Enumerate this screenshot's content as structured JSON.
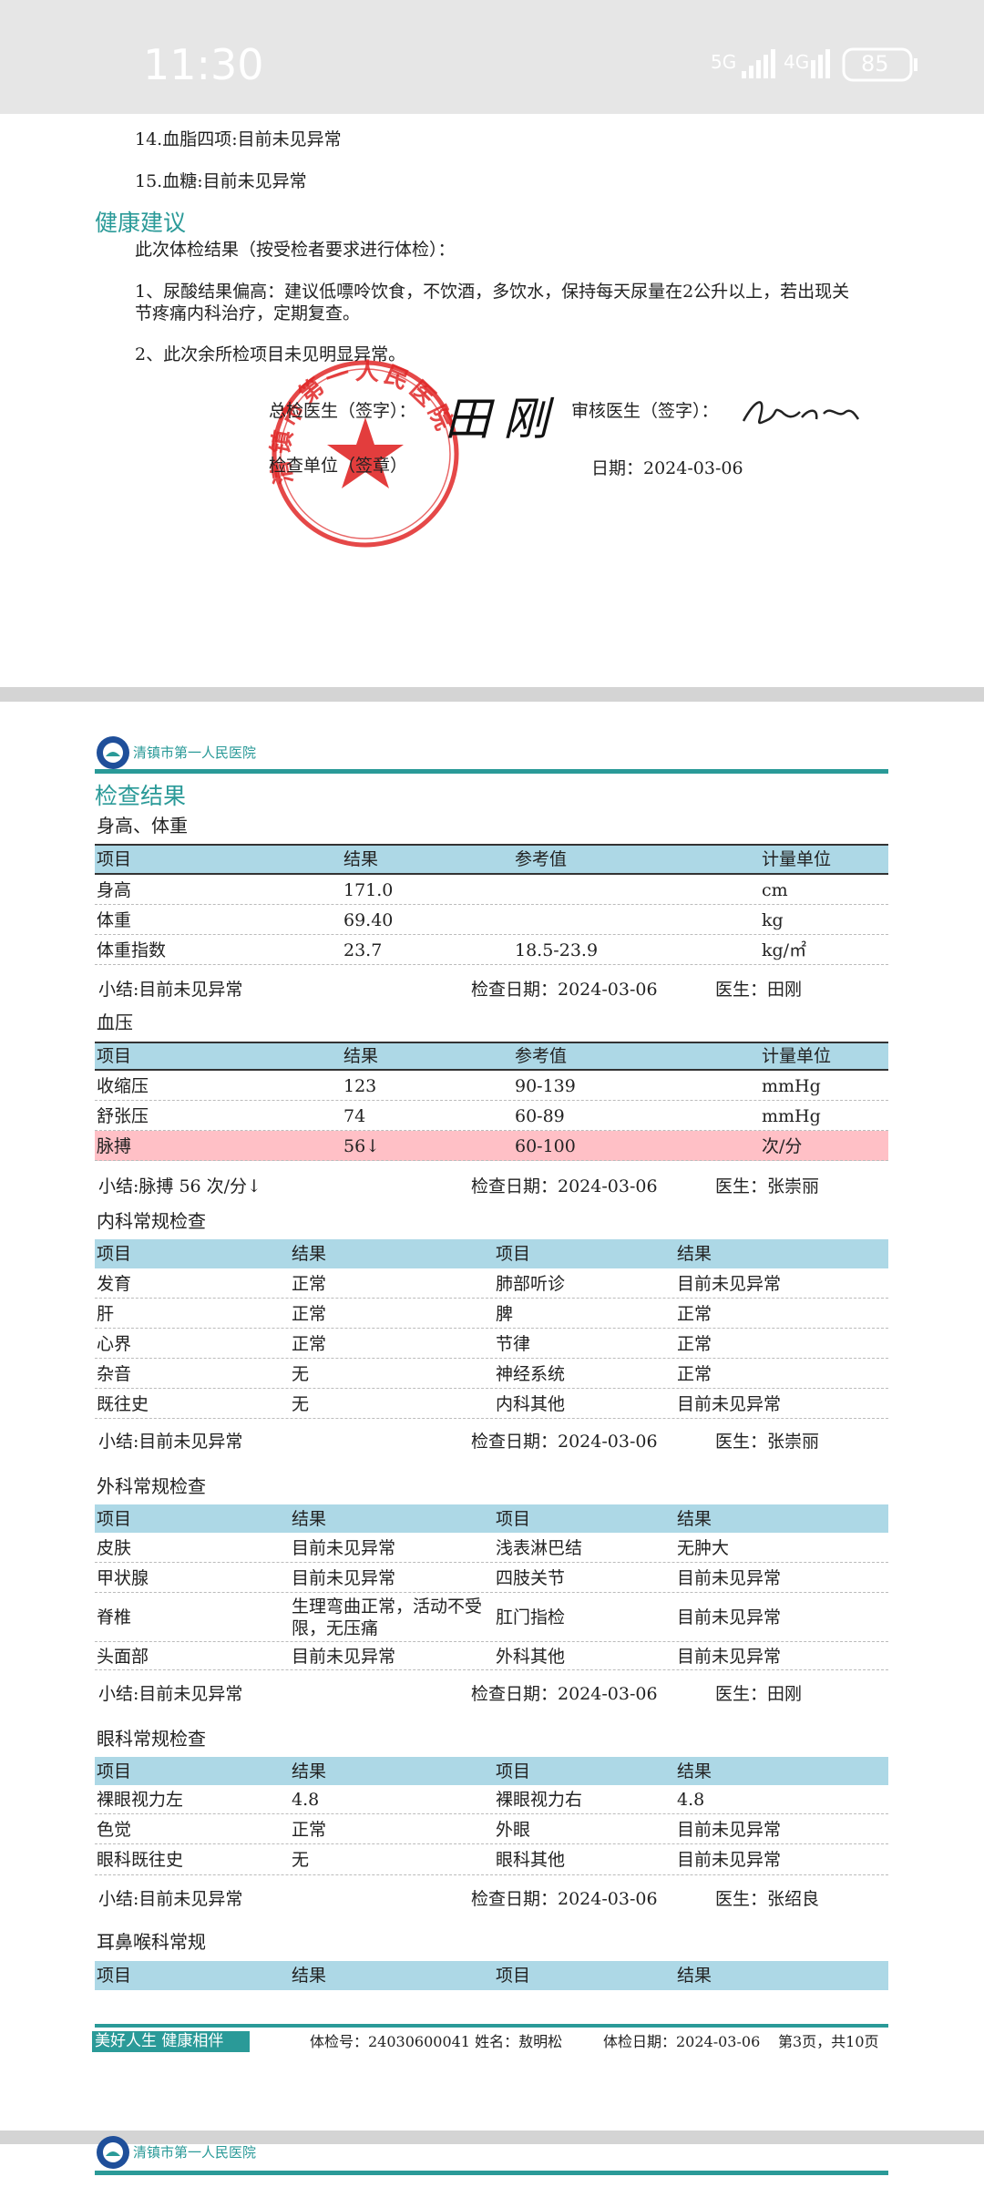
{
  "status_bar": {
    "time": "11:30",
    "network_1": "5G",
    "network_2": "4G",
    "battery": "85"
  },
  "page1": {
    "items": [
      "14.血脂四项:目前未见异常",
      "15.血糖:目前未见异常"
    ],
    "section_title": "健康建议",
    "intro": "此次体检结果（按受检者要求进行体检）：",
    "advice": [
      "1、尿酸结果偏高：建议低嘌呤饮食，不饮酒，多饮水，保持每天尿量在2公升以上，若出现关节疼痛内科治疗，定期复查。",
      "2、此次余所检项目未见明显异常。"
    ],
    "chief_doctor_label": "总检医生（签字）：",
    "chief_signature": "田刚",
    "review_doctor_label": "审核医生（签字）：",
    "unit_label": "检查单位（签章）",
    "date": "日期：2024-03-06",
    "stamp_text": "清镇市第一人民医院"
  },
  "page2": {
    "hospital": "清镇市第一人民医院",
    "title": "检查结果",
    "sections": [
      {
        "title": "身高、体重",
        "header": [
          "项目",
          "结果",
          "参考值",
          "计量单位"
        ],
        "rows": [
          [
            "身高",
            "171.0",
            null,
            "cm"
          ],
          [
            "体重",
            "69.40",
            null,
            "kg"
          ],
          [
            "体重指数",
            "23.7",
            "18.5-23.9",
            "kg/㎡"
          ]
        ],
        "summary": [
          "小结:目前未见异常",
          "检查日期：2024-03-06",
          "医生：田刚"
        ]
      },
      {
        "title": "血压",
        "header": [
          "项目",
          "结果",
          "参考值",
          "计量单位"
        ],
        "rows": [
          [
            "收缩压",
            "123",
            "90-139",
            "mmHg"
          ],
          [
            "舒张压",
            "74",
            "60-89",
            "mmHg"
          ],
          [
            "脉搏",
            "56↓",
            "60-100",
            "次/分"
          ]
        ],
        "summary": [
          "小结:脉搏 56 次/分↓",
          "检查日期：2024-03-06",
          "医生：张崇丽"
        ]
      },
      {
        "title": "内科常规检查",
        "header": [
          "项目",
          "结果",
          "项目",
          "结果"
        ],
        "rows": [
          [
            "发育",
            "正常",
            "肺部听诊",
            "目前未见异常"
          ],
          [
            "肝",
            "正常",
            "脾",
            "正常"
          ],
          [
            "心界",
            "正常",
            "节律",
            "正常"
          ],
          [
            "杂音",
            "无",
            "神经系统",
            "正常"
          ],
          [
            "既往史",
            "无",
            "内科其他",
            "目前未见异常"
          ]
        ],
        "summary": [
          "小结:目前未见异常",
          "检查日期：2024-03-06",
          "医生：张崇丽"
        ]
      },
      {
        "title": "外科常规检查",
        "header": [
          "项目",
          "结果",
          "项目",
          "结果"
        ],
        "rows": [
          [
            "皮肤",
            "目前未见异常",
            "浅表淋巴结",
            "无肿大"
          ],
          [
            "甲状腺",
            "目前未见异常",
            "四肢关节",
            "目前未见异常"
          ],
          [
            "脊椎",
            "生理弯曲正常，活动不受限，无压痛",
            "肛门指检",
            "目前未见异常"
          ],
          [
            "头面部",
            "目前未见异常",
            "外科其他",
            "目前未见异常"
          ]
        ],
        "summary": [
          "小结:目前未见异常",
          "检查日期：2024-03-06",
          "医生：田刚"
        ]
      },
      {
        "title": "眼科常规检查",
        "header": [
          "项目",
          "结果",
          "项目",
          "结果"
        ],
        "rows": [
          [
            "裸眼视力左",
            "4.8",
            "裸眼视力右",
            "4.8"
          ],
          [
            "色觉",
            "正常",
            "外眼",
            "目前未见异常"
          ],
          [
            "眼科既往史",
            "无",
            "眼科其他",
            "目前未见异常"
          ]
        ],
        "summary": [
          "小结:目前未见异常",
          "检查日期：2024-03-06",
          "医生：张绍良"
        ]
      },
      {
        "title": "耳鼻喉科常规",
        "header": [
          "项目",
          "结果",
          "项目",
          "结果"
        ],
        "rows": []
      }
    ],
    "footer": {
      "slogan": "美好人生 健康相伴",
      "exam_info": "体检号：24030600041 姓名：敖明松",
      "exam_date": "体检日期：2024-03-06",
      "page": "第3页，共10页"
    }
  },
  "page3": {
    "hospital": "清镇市第一人民医院"
  }
}
